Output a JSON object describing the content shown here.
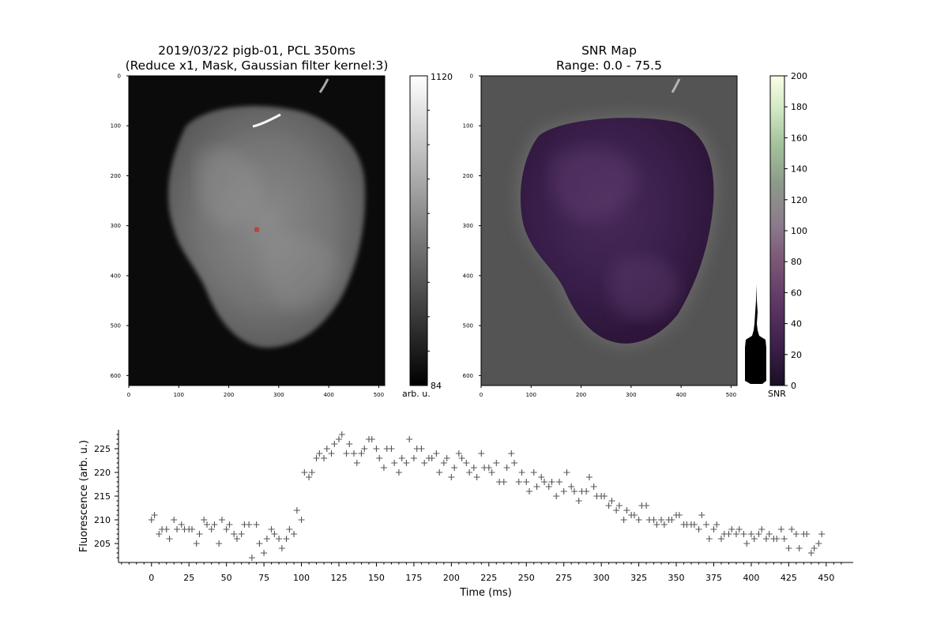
{
  "colors": {
    "heart_gray": "#7a7a7a",
    "roi_marker": "#b0493f",
    "snr_purple": "#3b1d49",
    "trace_marker": "#555555"
  },
  "chart_data": [
    {
      "type": "image",
      "panel": "fluorescence-image",
      "title_line1": "2019/03/22 pigb-01, PCL 350ms",
      "title_line2": "(Reduce x1, Mask, Gaussian filter kernel:3)",
      "x_ticks": [
        "0",
        "100",
        "200",
        "300",
        "400",
        "500"
      ],
      "y_ticks": [
        "0",
        "100",
        "200",
        "300",
        "400",
        "500",
        "600"
      ],
      "xlim": [
        0,
        512
      ],
      "ylim": [
        620,
        0
      ],
      "roi": {
        "x": 256,
        "y": 308
      },
      "colorbar": {
        "max_label": "1120",
        "min_label": "84",
        "label": "arb. u.",
        "cmap": "gray"
      }
    },
    {
      "type": "image",
      "panel": "snr-map",
      "title_line1": "SNR Map",
      "title_line2": "Range: 0.0 - 75.5",
      "x_ticks": [
        "0",
        "100",
        "200",
        "300",
        "400",
        "500"
      ],
      "y_ticks": [
        "0",
        "100",
        "200",
        "300",
        "400",
        "500",
        "600"
      ],
      "xlim": [
        0,
        512
      ],
      "ylim": [
        620,
        0
      ],
      "colorbar": {
        "ticks": [
          "0",
          "20",
          "40",
          "60",
          "80",
          "100",
          "120",
          "140",
          "160",
          "180",
          "200"
        ],
        "range": [
          0,
          200
        ],
        "label": "SNR",
        "cmap": "magma-green"
      }
    },
    {
      "type": "scatter",
      "panel": "fluorescence-trace",
      "xlabel": "Time (ms)",
      "ylabel": "Fluorescence (arb. u.)",
      "xlim": [
        -22,
        468
      ],
      "ylim": [
        201,
        229
      ],
      "x_ticks": [
        "0",
        "25",
        "50",
        "75",
        "100",
        "125",
        "150",
        "175",
        "200",
        "225",
        "250",
        "275",
        "300",
        "325",
        "350",
        "375",
        "400",
        "425",
        "450"
      ],
      "y_ticks": [
        "205",
        "210",
        "215",
        "220",
        "225"
      ],
      "marker": "+",
      "points": [
        [
          0,
          210
        ],
        [
          2,
          211
        ],
        [
          5,
          207
        ],
        [
          7,
          208
        ],
        [
          10,
          208
        ],
        [
          12,
          206
        ],
        [
          15,
          210
        ],
        [
          17,
          208
        ],
        [
          20,
          209
        ],
        [
          22,
          208
        ],
        [
          25,
          208
        ],
        [
          27,
          208
        ],
        [
          30,
          205
        ],
        [
          32,
          207
        ],
        [
          35,
          210
        ],
        [
          37,
          209
        ],
        [
          40,
          208
        ],
        [
          42,
          209
        ],
        [
          45,
          205
        ],
        [
          47,
          210
        ],
        [
          50,
          208
        ],
        [
          52,
          209
        ],
        [
          55,
          207
        ],
        [
          57,
          206
        ],
        [
          60,
          207
        ],
        [
          62,
          209
        ],
        [
          65,
          209
        ],
        [
          67,
          202
        ],
        [
          70,
          209
        ],
        [
          72,
          205
        ],
        [
          75,
          203
        ],
        [
          77,
          206
        ],
        [
          80,
          208
        ],
        [
          82,
          207
        ],
        [
          85,
          206
        ],
        [
          87,
          204
        ],
        [
          90,
          206
        ],
        [
          92,
          208
        ],
        [
          95,
          207
        ],
        [
          97,
          212
        ],
        [
          100,
          210
        ],
        [
          102,
          220
        ],
        [
          105,
          219
        ],
        [
          107,
          220
        ],
        [
          110,
          223
        ],
        [
          112,
          224
        ],
        [
          115,
          223
        ],
        [
          117,
          225
        ],
        [
          120,
          224
        ],
        [
          122,
          226
        ],
        [
          125,
          227
        ],
        [
          127,
          228
        ],
        [
          130,
          224
        ],
        [
          132,
          226
        ],
        [
          135,
          224
        ],
        [
          137,
          222
        ],
        [
          140,
          224
        ],
        [
          142,
          225
        ],
        [
          145,
          227
        ],
        [
          147,
          227
        ],
        [
          150,
          225
        ],
        [
          152,
          223
        ],
        [
          155,
          221
        ],
        [
          157,
          225
        ],
        [
          160,
          225
        ],
        [
          162,
          222
        ],
        [
          165,
          220
        ],
        [
          167,
          223
        ],
        [
          170,
          222
        ],
        [
          172,
          227
        ],
        [
          175,
          223
        ],
        [
          177,
          225
        ],
        [
          180,
          225
        ],
        [
          182,
          222
        ],
        [
          185,
          223
        ],
        [
          187,
          223
        ],
        [
          190,
          224
        ],
        [
          192,
          220
        ],
        [
          195,
          222
        ],
        [
          197,
          223
        ],
        [
          200,
          219
        ],
        [
          202,
          221
        ],
        [
          205,
          224
        ],
        [
          207,
          223
        ],
        [
          210,
          222
        ],
        [
          212,
          220
        ],
        [
          215,
          221
        ],
        [
          217,
          219
        ],
        [
          220,
          224
        ],
        [
          222,
          221
        ],
        [
          225,
          221
        ],
        [
          227,
          220
        ],
        [
          230,
          222
        ],
        [
          232,
          218
        ],
        [
          235,
          218
        ],
        [
          237,
          221
        ],
        [
          240,
          224
        ],
        [
          242,
          222
        ],
        [
          245,
          218
        ],
        [
          247,
          220
        ],
        [
          250,
          218
        ],
        [
          252,
          216
        ],
        [
          255,
          220
        ],
        [
          257,
          217
        ],
        [
          260,
          219
        ],
        [
          262,
          218
        ],
        [
          265,
          217
        ],
        [
          267,
          218
        ],
        [
          270,
          215
        ],
        [
          272,
          218
        ],
        [
          275,
          216
        ],
        [
          277,
          220
        ],
        [
          280,
          217
        ],
        [
          282,
          216
        ],
        [
          285,
          214
        ],
        [
          287,
          216
        ],
        [
          290,
          216
        ],
        [
          292,
          219
        ],
        [
          295,
          217
        ],
        [
          297,
          215
        ],
        [
          300,
          215
        ],
        [
          302,
          215
        ],
        [
          305,
          213
        ],
        [
          307,
          214
        ],
        [
          310,
          212
        ],
        [
          312,
          213
        ],
        [
          315,
          210
        ],
        [
          317,
          212
        ],
        [
          320,
          211
        ],
        [
          322,
          211
        ],
        [
          325,
          210
        ],
        [
          327,
          213
        ],
        [
          330,
          213
        ],
        [
          332,
          210
        ],
        [
          335,
          210
        ],
        [
          337,
          209
        ],
        [
          340,
          210
        ],
        [
          342,
          209
        ],
        [
          345,
          210
        ],
        [
          347,
          210
        ],
        [
          350,
          211
        ],
        [
          352,
          211
        ],
        [
          355,
          209
        ],
        [
          357,
          209
        ],
        [
          360,
          209
        ],
        [
          362,
          209
        ],
        [
          365,
          208
        ],
        [
          367,
          211
        ],
        [
          370,
          209
        ],
        [
          372,
          206
        ],
        [
          375,
          208
        ],
        [
          377,
          209
        ],
        [
          380,
          206
        ],
        [
          382,
          207
        ],
        [
          385,
          207
        ],
        [
          387,
          208
        ],
        [
          390,
          207
        ],
        [
          392,
          208
        ],
        [
          395,
          207
        ],
        [
          397,
          205
        ],
        [
          400,
          207
        ],
        [
          402,
          206
        ],
        [
          405,
          207
        ],
        [
          407,
          208
        ],
        [
          410,
          206
        ],
        [
          412,
          207
        ],
        [
          415,
          206
        ],
        [
          417,
          206
        ],
        [
          420,
          208
        ],
        [
          422,
          206
        ],
        [
          425,
          204
        ],
        [
          427,
          208
        ],
        [
          430,
          207
        ],
        [
          432,
          204
        ],
        [
          435,
          207
        ],
        [
          437,
          207
        ],
        [
          440,
          203
        ],
        [
          442,
          204
        ],
        [
          445,
          205
        ],
        [
          447,
          207
        ]
      ]
    }
  ]
}
